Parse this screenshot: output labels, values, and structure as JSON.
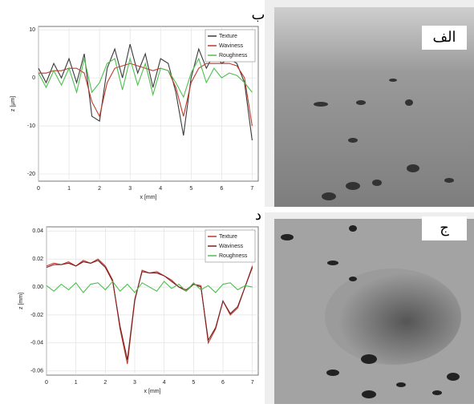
{
  "chart_data": [
    {
      "type": "line",
      "panel_label": "ب",
      "xlabel": "x [mm]",
      "ylabel": "z [µm]",
      "x": [
        0,
        0.25,
        0.5,
        0.75,
        1,
        1.25,
        1.5,
        1.75,
        2,
        2.25,
        2.5,
        2.75,
        3,
        3.25,
        3.5,
        3.75,
        4,
        4.25,
        4.5,
        4.75,
        5,
        5.25,
        5.5,
        5.75,
        6,
        6.25,
        6.5,
        6.75,
        7
      ],
      "series": [
        {
          "name": "Texture",
          "color": "#3a3a3a",
          "values": [
            2,
            -1,
            3,
            0,
            4,
            -1,
            5,
            -8,
            -9,
            2,
            6,
            0,
            7,
            1,
            5,
            -2,
            4,
            3,
            -3,
            -12,
            0,
            6,
            2,
            5,
            3,
            4,
            3,
            -1,
            -13
          ]
        },
        {
          "name": "Waviness",
          "color": "#c0392b",
          "values": [
            1,
            1,
            1.5,
            1.5,
            2,
            2,
            1,
            -5,
            -8,
            -1,
            2,
            2.5,
            3,
            2.5,
            2,
            1.5,
            2,
            1.5,
            -2,
            -8,
            -1,
            2,
            3,
            3,
            3,
            3,
            2.5,
            0,
            -10
          ]
        },
        {
          "name": "Roughness",
          "color": "#4cc04c",
          "values": [
            1,
            -2,
            1.5,
            -1.5,
            2,
            -3,
            4,
            -3,
            -1,
            3,
            4,
            -2.5,
            4,
            -1.5,
            3,
            -3.5,
            2,
            1.5,
            -1,
            -4,
            1,
            4,
            -1,
            2,
            0,
            1,
            0.5,
            -1,
            -3
          ]
        }
      ],
      "xlim": [
        0,
        7.2
      ],
      "ylim": [
        -21.5,
        10.7
      ],
      "xticks": [
        0,
        1,
        2,
        3,
        4,
        5,
        6,
        7
      ],
      "yticks": [
        10,
        0,
        -10,
        -20
      ],
      "grid": true,
      "legend": "top-right"
    },
    {
      "type": "line",
      "panel_label": "د",
      "xlabel": "x [mm]",
      "ylabel": "z [mm]",
      "x": [
        0,
        0.25,
        0.5,
        0.75,
        1,
        1.25,
        1.5,
        1.75,
        2,
        2.25,
        2.5,
        2.75,
        3,
        3.25,
        3.5,
        3.75,
        4,
        4.25,
        4.5,
        4.75,
        5,
        5.25,
        5.5,
        5.75,
        6,
        6.25,
        6.5,
        6.75,
        7
      ],
      "series": [
        {
          "name": "Texture",
          "color": "#c0392b",
          "values": [
            0.015,
            0.017,
            0.016,
            0.018,
            0.015,
            0.019,
            0.017,
            0.02,
            0.015,
            0.005,
            -0.03,
            -0.055,
            -0.01,
            0.012,
            0.01,
            0.011,
            0.008,
            0.005,
            0,
            -0.003,
            0.002,
            0.001,
            -0.04,
            -0.03,
            -0.01,
            -0.02,
            -0.015,
            0,
            0.015
          ]
        },
        {
          "name": "Waviness",
          "color": "#7a1f1f",
          "values": [
            0.014,
            0.016,
            0.016,
            0.017,
            0.015,
            0.018,
            0.017,
            0.019,
            0.014,
            0.004,
            -0.028,
            -0.052,
            -0.009,
            0.011,
            0.01,
            0.01,
            0.008,
            0.004,
            0,
            -0.002,
            0.002,
            0,
            -0.038,
            -0.029,
            -0.01,
            -0.019,
            -0.014,
            0,
            0.014
          ]
        },
        {
          "name": "Roughness",
          "color": "#4cc04c",
          "values": [
            0.001,
            -0.003,
            0.002,
            -0.002,
            0.003,
            -0.004,
            0.002,
            0.003,
            -0.002,
            0.004,
            -0.003,
            0.002,
            -0.004,
            0.003,
            0,
            -0.003,
            0.004,
            -0.001,
            0.002,
            -0.003,
            0.003,
            -0.002,
            0.001,
            -0.004,
            0.002,
            0.003,
            -0.002,
            0.001,
            0
          ]
        }
      ],
      "xlim": [
        0,
        7.2
      ],
      "ylim": [
        -0.063,
        0.043
      ],
      "xticks": [
        0,
        1,
        2,
        3,
        4,
        5,
        6,
        7
      ],
      "yticks": [
        0.04,
        0.02,
        {
          "value": 0,
          "label": "0.00"
        },
        -0.02,
        -0.04,
        -0.06
      ],
      "grid": true,
      "legend": "top-right"
    }
  ],
  "images": [
    {
      "label": "الف"
    },
    {
      "label": "ج"
    }
  ]
}
